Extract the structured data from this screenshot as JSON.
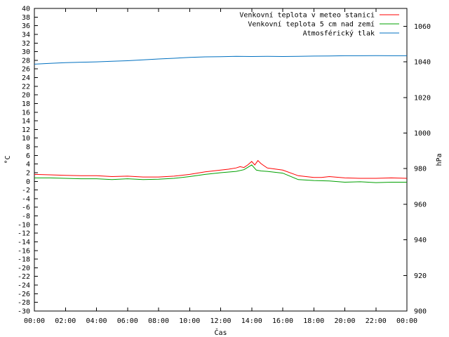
{
  "chart_data": {
    "type": "line",
    "xlabel": "Čas",
    "ylabel_left": "°C",
    "ylabel_right": "hPa",
    "x_ticks": [
      "00:00",
      "02:00",
      "04:00",
      "06:00",
      "08:00",
      "10:00",
      "12:00",
      "14:00",
      "16:00",
      "18:00",
      "20:00",
      "22:00",
      "00:00"
    ],
    "xlim_hours": [
      0,
      24
    ],
    "ylim_left": [
      -30,
      40
    ],
    "ylim_right": [
      900,
      1070
    ],
    "left_ticks": [
      40,
      38,
      36,
      34,
      32,
      30,
      28,
      26,
      24,
      22,
      20,
      18,
      16,
      14,
      12,
      10,
      8,
      6,
      4,
      2,
      0,
      -2,
      -4,
      -6,
      -8,
      -10,
      -12,
      -14,
      -16,
      -18,
      -20,
      -22,
      -24,
      -26,
      -28,
      -30
    ],
    "right_ticks": [
      1060,
      1040,
      1020,
      1000,
      980,
      960,
      940,
      920,
      900
    ],
    "grid": false,
    "legend_position": "top-right",
    "series": [
      {
        "name": "Venkovní teplota v meteo stanici",
        "color": "#ff0000",
        "axis": "left",
        "x": [
          0,
          1,
          2,
          3,
          4,
          5,
          6,
          7,
          8,
          9,
          10,
          11,
          12,
          12.5,
          13,
          13.25,
          13.5,
          13.75,
          14,
          14.2,
          14.4,
          14.6,
          14.8,
          15,
          16,
          17,
          18,
          18.5,
          19,
          20,
          21,
          22,
          23,
          24
        ],
        "values": [
          1.6,
          1.5,
          1.4,
          1.3,
          1.3,
          1.1,
          1.2,
          1.0,
          1.0,
          1.2,
          1.6,
          2.2,
          2.6,
          2.8,
          3.1,
          3.4,
          3.2,
          3.8,
          4.6,
          3.8,
          4.8,
          4.1,
          3.6,
          3.1,
          2.6,
          1.3,
          0.9,
          0.9,
          1.1,
          0.8,
          0.7,
          0.7,
          0.8,
          0.7
        ]
      },
      {
        "name": "Venkovní teplota 5 cm nad zemí",
        "color": "#00a000",
        "axis": "left",
        "x": [
          0,
          1,
          2,
          3,
          4,
          5,
          6,
          7,
          8,
          9,
          10,
          11,
          12,
          13,
          13.5,
          14,
          14.3,
          14.6,
          15,
          16,
          17,
          18,
          19,
          20,
          21,
          22,
          23,
          24
        ],
        "values": [
          0.8,
          0.8,
          0.7,
          0.6,
          0.6,
          0.4,
          0.6,
          0.4,
          0.5,
          0.7,
          1.1,
          1.6,
          2.0,
          2.3,
          2.7,
          3.8,
          2.6,
          2.4,
          2.3,
          1.9,
          0.4,
          0.2,
          0.1,
          -0.2,
          -0.1,
          -0.3,
          -0.2,
          -0.2
        ]
      },
      {
        "name": "Atmosférický tlak",
        "color": "#0070c0",
        "axis": "right",
        "x": [
          0,
          1,
          2,
          3,
          4,
          5,
          6,
          7,
          8,
          9,
          10,
          11,
          12,
          13,
          14,
          15,
          16,
          17,
          18,
          19,
          20,
          21,
          22,
          23,
          24
        ],
        "values": [
          1038.7,
          1039.1,
          1039.5,
          1039.8,
          1040.0,
          1040.3,
          1040.6,
          1041.1,
          1041.6,
          1042.0,
          1042.5,
          1042.8,
          1042.9,
          1043.1,
          1043.0,
          1043.1,
          1043.0,
          1043.1,
          1043.2,
          1043.3,
          1043.4,
          1043.4,
          1043.5,
          1043.4,
          1043.4
        ]
      }
    ]
  }
}
